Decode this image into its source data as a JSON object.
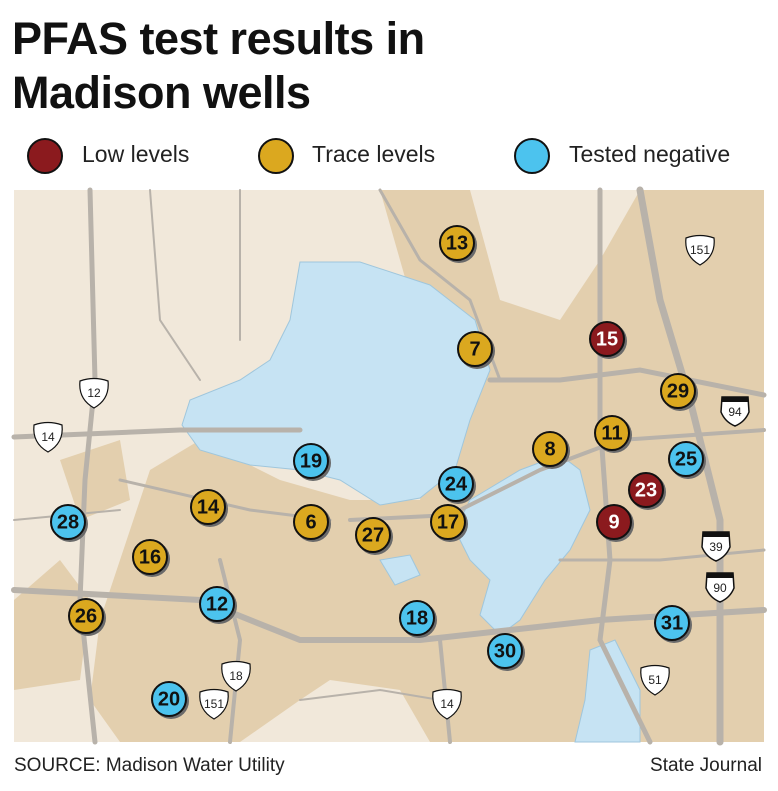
{
  "title": [
    "PFAS test results in",
    "Madison wells"
  ],
  "legend": [
    {
      "name": "Low levels",
      "color": "#8b1a1e",
      "wells": [
        "15",
        "23",
        "9"
      ]
    },
    {
      "name": "Trace levels",
      "color": "#dba81f",
      "wells": [
        "13",
        "7",
        "29",
        "11",
        "8",
        "14",
        "6",
        "27",
        "17",
        "16",
        "26"
      ]
    },
    {
      "name": "Tested negative",
      "color": "#4cc3ee",
      "wells": [
        "19",
        "24",
        "25",
        "28",
        "12",
        "18",
        "30",
        "31",
        "20"
      ]
    }
  ],
  "highways": [
    "151",
    "12",
    "14",
    "94",
    "39",
    "90",
    "18",
    "151",
    "14",
    "51"
  ],
  "source": "SOURCE: Madison Water Utility",
  "credit": "State Journal"
}
